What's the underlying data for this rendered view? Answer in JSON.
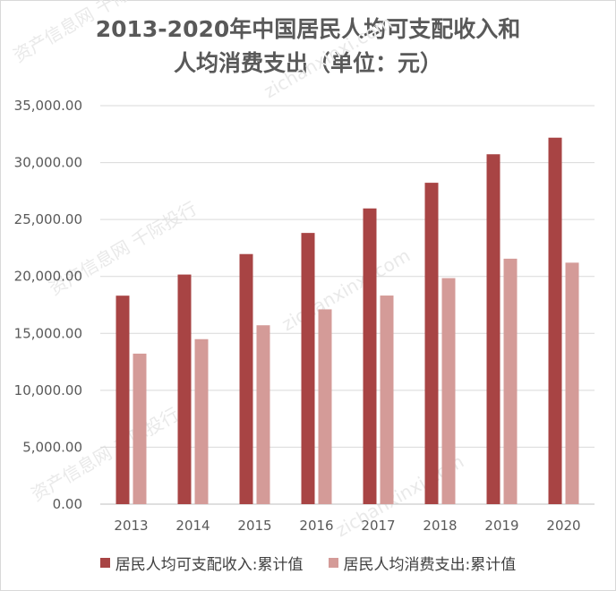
{
  "chart_data": {
    "type": "bar",
    "title_line1": "2013-2020年中国居民人均可支配收入和",
    "title_line2": "人均消费支出（单位：元）",
    "categories": [
      "2013",
      "2014",
      "2015",
      "2016",
      "2017",
      "2018",
      "2019",
      "2020"
    ],
    "series": [
      {
        "name": "居民人均可支配收入:累计值",
        "color": "#a84444",
        "values": [
          18311,
          20167,
          21966,
          23821,
          25974,
          28228,
          30733,
          32189
        ]
      },
      {
        "name": "居民人均消费支出:累计值",
        "color": "#d49b98",
        "values": [
          13220,
          14491,
          15712,
          17111,
          18322,
          19853,
          21559,
          21210
        ]
      }
    ],
    "ylim": [
      0,
      35000
    ],
    "yticks": [
      0,
      5000,
      10000,
      15000,
      20000,
      25000,
      30000,
      35000
    ],
    "ytick_labels": [
      "0.00",
      "5,000.00",
      "10,000.00",
      "15,000.00",
      "20,000.00",
      "25,000.00",
      "30,000.00",
      "35,000.00"
    ],
    "grid": true,
    "legend_position": "bottom"
  },
  "watermark": {
    "text_cn": "资产信息网 千际投行",
    "text_en": "zichanxinxi.com"
  }
}
